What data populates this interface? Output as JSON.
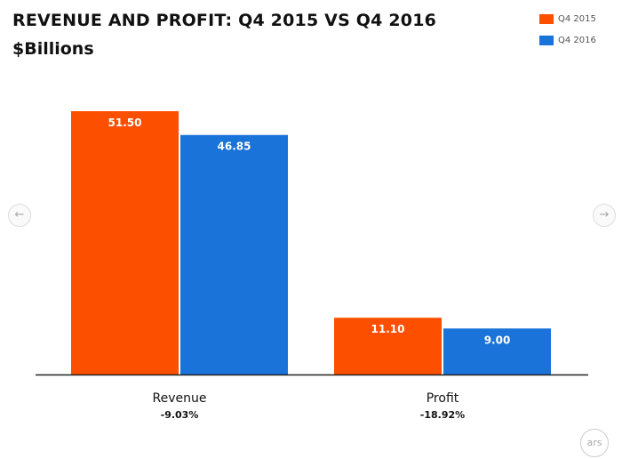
{
  "chart_data": {
    "type": "bar",
    "title": "REVENUE AND PROFIT: Q4 2015 VS Q4 2016",
    "subtitle": "$Billions",
    "categories": [
      "Revenue",
      "Profit"
    ],
    "category_notes": [
      "-9.03%",
      "-18.92%"
    ],
    "series": [
      {
        "name": "Q4 2015",
        "color": "#fc4f00",
        "values": [
          51.5,
          11.1
        ],
        "labels": [
          "51.50",
          "11.10"
        ]
      },
      {
        "name": "Q4 2016",
        "color": "#1a73d8",
        "values": [
          46.85,
          9.0
        ],
        "labels": [
          "46.85",
          "9.00"
        ]
      }
    ],
    "ylim": [
      0,
      51.5
    ],
    "legend_position": "top-right",
    "grid": false
  },
  "branding": {
    "logo_text": "ars"
  },
  "nav": {
    "prev_icon": "←",
    "next_icon": "→"
  }
}
